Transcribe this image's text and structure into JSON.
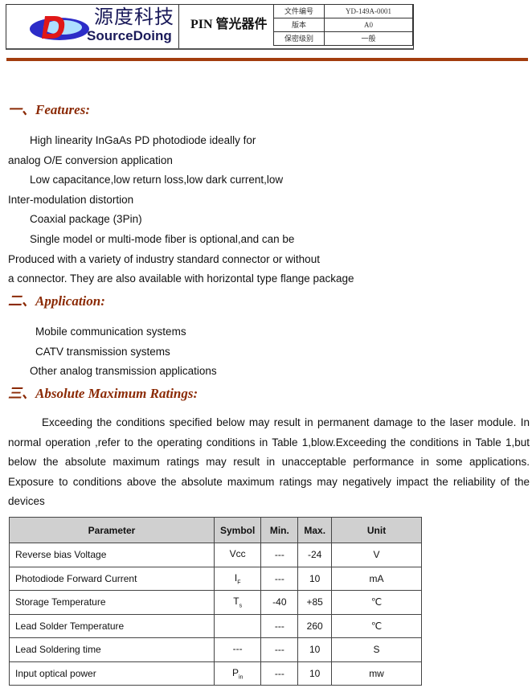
{
  "header": {
    "logo_cn": "源度科技",
    "logo_en": "SourceDoing",
    "title": "PIN 管光器件",
    "meta": [
      {
        "label": "文件编号",
        "value": "YD-149A-0001"
      },
      {
        "label": "版本",
        "value": "A0"
      },
      {
        "label": "保密级别",
        "value": "一般"
      }
    ]
  },
  "sections": {
    "features": {
      "title": "一、Features:",
      "lines": [
        "High linearity InGaAs PD photodiode ideally for",
        "analog O/E conversion application",
        "Low capacitance,low return loss,low dark current,low",
        "Inter-modulation distortion",
        "Coaxial package (3Pin)",
        "Single model or multi-mode fiber is optional,and can be",
        "Produced with a variety of industry standard connector or without",
        "a connector. They are also available with horizontal type flange package"
      ]
    },
    "application": {
      "title": "二、Application:",
      "lines": [
        "Mobile communication systems",
        "CATV transmission systems",
        "Other analog transmission applications"
      ]
    },
    "ratings": {
      "title": "三、Absolute Maximum Ratings:",
      "paragraph": "Exceeding the conditions specified below may result in permanent damage to the laser module. In normal  operation ,refer to the operating conditions in Table 1,blow.Exceeding the conditions in Table 1,but below the absolute maximum ratings may result in unacceptable performance in some applications. Exposure to conditions above the absolute maximum ratings may negatively impact the reliability of the devices"
    }
  },
  "bullet": "",
  "table": {
    "headers": [
      "Parameter",
      "Symbol",
      "Min.",
      "Max.",
      "Unit"
    ],
    "rows": [
      {
        "param": "Reverse bias Voltage",
        "sym": "Vcc",
        "sub": "",
        "min": "---",
        "max": "-24",
        "unit": "V"
      },
      {
        "param": "Photodiode Forward Current",
        "sym": "I",
        "sub": "F",
        "min": "---",
        "max": "10",
        "unit": "mA"
      },
      {
        "param": "Storage Temperature",
        "sym": "T",
        "sub": "s",
        "min": "-40",
        "max": "+85",
        "unit": "℃"
      },
      {
        "param": "Lead Solder Temperature",
        "sym": "",
        "sub": "",
        "min": "---",
        "max": "260",
        "unit": "℃"
      },
      {
        "param": "Lead Soldering time",
        "sym": "---",
        "sub": "",
        "min": "---",
        "max": "10",
        "unit": "S"
      },
      {
        "param": "Input optical power",
        "sym": "P",
        "sub": "in",
        "min": "---",
        "max": "10",
        "unit": "mw"
      }
    ]
  }
}
